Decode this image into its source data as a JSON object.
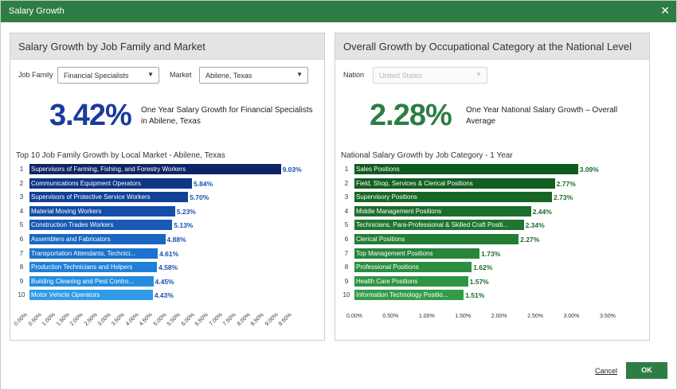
{
  "window": {
    "title": "Salary Growth",
    "close_symbol": "✕"
  },
  "left_panel": {
    "header": "Salary Growth by Job Family and Market",
    "job_family_label": "Job Family",
    "job_family_value": "Financial Specialists",
    "market_label": "Market",
    "market_value": "Abilene, Texas",
    "kpi_value": "3.42%",
    "kpi_desc_line1": "One Year Salary Growth for Financial Specialists",
    "kpi_desc_line2": "in Abilene, Texas",
    "chart_title": "Top 10 Job Family Growth by Local Market - Abilene, Texas"
  },
  "right_panel": {
    "header": "Overall Growth by Occupational Category at the National Level",
    "nation_label": "Nation",
    "nation_value": "United States",
    "kpi_value": "2.28%",
    "kpi_desc_line1": "One Year National Salary Growth – Overall",
    "kpi_desc_line2": "Average",
    "chart_title": "National Salary Growth by Job Category - 1 Year"
  },
  "colors": {
    "brand_green": "#2e7d44",
    "kpi_blue": "#1a3a9c",
    "kpi_green": "#2e7d44"
  },
  "footer": {
    "cancel_label": "Cancel",
    "ok_label": "OK"
  },
  "chart_data": [
    {
      "type": "bar",
      "orientation": "horizontal",
      "title": "Top 10 Job Family Growth by Local Market - Abilene, Texas",
      "categories": [
        "Supervisors of Farming, Fishing, and Forestry Workers",
        "Communications Equipment Operators",
        "Supervisors of Protective Service Workers",
        "Material Moving Workers",
        "Construction Trades Workers",
        "Assemblers and Fabricators",
        "Transportation Attendants, Technici...",
        "Production Technicians and Helpers",
        "Building Cleaning and Pest Contro...",
        "Motor Vehicle Operators"
      ],
      "ranks": [
        "1",
        "2",
        "3",
        "4",
        "5",
        "6",
        "7",
        "8",
        "9",
        "10"
      ],
      "values": [
        9.03,
        5.84,
        5.7,
        5.23,
        5.13,
        4.88,
        4.61,
        4.58,
        4.45,
        4.43
      ],
      "value_labels": [
        "9.03%",
        "5.84%",
        "5.70%",
        "5.23%",
        "5.13%",
        "4.88%",
        "4.61%",
        "4.58%",
        "4.45%",
        "4.43%"
      ],
      "bar_colors": [
        "#0d2466",
        "#0f3585",
        "#114196",
        "#144ea8",
        "#1759b5",
        "#1a66c2",
        "#1d73cf",
        "#2080d8",
        "#248de0",
        "#2f9ae6"
      ],
      "value_color": "#1a4fb0",
      "xlim": [
        0,
        9.5
      ],
      "xticks": [
        "0.00%",
        "0.50%",
        "1.00%",
        "1.50%",
        "2.00%",
        "2.50%",
        "3.00%",
        "3.50%",
        "4.00%",
        "4.50%",
        "5.00%",
        "5.50%",
        "6.00%",
        "6.50%",
        "7.00%",
        "7.50%",
        "8.00%",
        "8.50%",
        "9.00%",
        "9.50%"
      ],
      "tick_rotation": "diagonal"
    },
    {
      "type": "bar",
      "orientation": "horizontal",
      "title": "National Salary Growth by Job Category - 1 Year",
      "categories": [
        "Sales Positions",
        "Field, Shop, Services & Clerical Positions",
        "Supervisory Positions",
        "Middle Management Positions",
        "Technicians, Para-Professional & Skilled Craft Positi...",
        "Clerical Positions",
        "Top Management Positions",
        "Professional Positions",
        "Health Care Positions",
        "Information Technology Positio..."
      ],
      "ranks": [
        "1",
        "2",
        "3",
        "4",
        "5",
        "6",
        "7",
        "8",
        "9",
        "10"
      ],
      "values": [
        3.09,
        2.77,
        2.73,
        2.44,
        2.34,
        2.27,
        1.73,
        1.62,
        1.57,
        1.51
      ],
      "value_labels": [
        "3.09%",
        "2.77%",
        "2.73%",
        "2.44%",
        "2.34%",
        "2.27%",
        "1.73%",
        "1.62%",
        "1.57%",
        "1.51%"
      ],
      "bar_colors": [
        "#0f5a1e",
        "#135f22",
        "#176626",
        "#1b6e2b",
        "#1f7530",
        "#237d35",
        "#27853a",
        "#2b8d3f",
        "#2f9544",
        "#349c49"
      ],
      "value_color": "#1d6b2c",
      "xlim": [
        0,
        3.5
      ],
      "xticks": [
        "0.00%",
        "0.50%",
        "1.00%",
        "1.50%",
        "2.00%",
        "2.50%",
        "3.00%",
        "3.50%"
      ],
      "tick_rotation": "horizontal"
    }
  ]
}
